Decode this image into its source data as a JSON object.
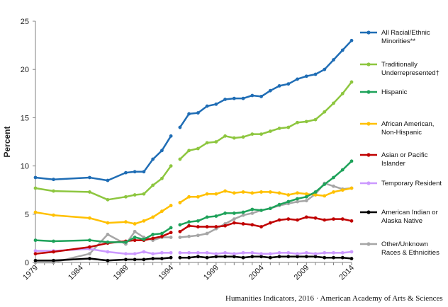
{
  "footer": "Humanities Indicators, 2016 · American Academy of Arts & Sciences",
  "chart_data": {
    "type": "line",
    "title": "",
    "xlabel": "",
    "ylabel": "Percent",
    "ylim": [
      0,
      25
    ],
    "yticks": [
      0,
      5,
      10,
      15,
      20,
      25
    ],
    "xticks": [
      1979,
      1984,
      1989,
      1994,
      1999,
      2004,
      2009,
      2014
    ],
    "xlim": [
      1979,
      2014
    ],
    "grid": false,
    "legend_position": "right",
    "series": [
      {
        "name": "All Racial/Ethnic Minorities**",
        "color": "#1f6db5",
        "segments": [
          {
            "x": [
              1979,
              1981,
              1985,
              1987,
              1989,
              1990,
              1991,
              1992,
              1993,
              1994
            ],
            "y": [
              8.8,
              8.6,
              8.8,
              8.5,
              9.3,
              9.4,
              9.4,
              10.7,
              11.6,
              13.1
            ]
          },
          {
            "x": [
              1995,
              1996,
              1997,
              1998,
              1999,
              2000,
              2001,
              2002,
              2003,
              2004,
              2005,
              2006,
              2007,
              2008,
              2009,
              2010,
              2011,
              2012,
              2013,
              2014
            ],
            "y": [
              14.0,
              15.4,
              15.5,
              16.2,
              16.4,
              16.9,
              17.0,
              17.0,
              17.3,
              17.2,
              17.8,
              18.3,
              18.5,
              19.0,
              19.3,
              19.5,
              20.0,
              21.0,
              22.0,
              23.0
            ]
          }
        ]
      },
      {
        "name": "Traditionally Underrepresented†",
        "color": "#8dc63f",
        "segments": [
          {
            "x": [
              1979,
              1981,
              1985,
              1987,
              1989,
              1990,
              1991,
              1992,
              1993,
              1994
            ],
            "y": [
              7.7,
              7.4,
              7.3,
              6.5,
              6.8,
              7.0,
              7.1,
              8.0,
              8.7,
              10.0
            ]
          },
          {
            "x": [
              1995,
              1996,
              1997,
              1998,
              1999,
              2000,
              2001,
              2002,
              2003,
              2004,
              2005,
              2006,
              2007,
              2008,
              2009,
              2010,
              2011,
              2012,
              2013,
              2014
            ],
            "y": [
              10.7,
              11.6,
              11.8,
              12.4,
              12.5,
              13.1,
              12.9,
              13.0,
              13.3,
              13.3,
              13.6,
              13.9,
              14.0,
              14.5,
              14.6,
              14.8,
              15.6,
              16.5,
              17.5,
              18.7
            ]
          }
        ]
      },
      {
        "name": "Hispanic",
        "color": "#1ea25a",
        "segments": [
          {
            "x": [
              1979,
              1981,
              1985,
              1987,
              1989,
              1990,
              1991,
              1992,
              1993,
              1994
            ],
            "y": [
              2.3,
              2.2,
              2.3,
              2.1,
              2.1,
              2.6,
              2.4,
              2.9,
              3.0,
              3.6
            ]
          },
          {
            "x": [
              1995,
              1996,
              1997,
              1998,
              1999,
              2000,
              2001,
              2002,
              2003,
              2004,
              2005,
              2006,
              2007,
              2008,
              2009,
              2010,
              2011,
              2012,
              2013,
              2014
            ],
            "y": [
              3.9,
              4.2,
              4.3,
              4.7,
              4.8,
              5.1,
              5.1,
              5.2,
              5.5,
              5.4,
              5.6,
              6.0,
              6.3,
              6.6,
              6.8,
              7.3,
              8.1,
              8.8,
              9.6,
              10.5
            ]
          }
        ]
      },
      {
        "name": "African American, Non-Hispanic",
        "color": "#ffc000",
        "segments": [
          {
            "x": [
              1979,
              1981,
              1985,
              1987,
              1989,
              1990,
              1991,
              1992,
              1993,
              1994
            ],
            "y": [
              5.2,
              4.9,
              4.6,
              4.1,
              4.2,
              4.0,
              4.3,
              4.7,
              5.3,
              5.9
            ]
          },
          {
            "x": [
              1995,
              1996,
              1997,
              1998,
              1999,
              2000,
              2001,
              2002,
              2003,
              2004,
              2005,
              2006,
              2007,
              2008,
              2009,
              2010,
              2011,
              2012,
              2013,
              2014
            ],
            "y": [
              6.2,
              6.8,
              6.8,
              7.1,
              7.1,
              7.4,
              7.2,
              7.3,
              7.2,
              7.3,
              7.3,
              7.2,
              7.0,
              7.2,
              7.1,
              7.0,
              6.9,
              7.3,
              7.5,
              7.7
            ]
          }
        ]
      },
      {
        "name": "Asian or Pacific Islander",
        "color": "#c00000",
        "segments": [
          {
            "x": [
              1979,
              1981,
              1985,
              1987,
              1989,
              1990,
              1991,
              1992,
              1993,
              1994
            ],
            "y": [
              0.9,
              1.1,
              1.6,
              2.0,
              2.2,
              2.3,
              2.3,
              2.5,
              2.7,
              3.1
            ]
          },
          {
            "x": [
              1995,
              1996,
              1997,
              1998,
              1999,
              2000,
              2001,
              2002,
              2003,
              2004,
              2005,
              2006,
              2007,
              2008,
              2009,
              2010,
              2011,
              2012,
              2013,
              2014
            ],
            "y": [
              3.2,
              3.8,
              3.7,
              3.7,
              3.7,
              3.8,
              4.1,
              4.0,
              3.9,
              3.7,
              4.1,
              4.4,
              4.5,
              4.4,
              4.7,
              4.6,
              4.4,
              4.5,
              4.5,
              4.3
            ]
          }
        ]
      },
      {
        "name": "Temporary Resident",
        "color": "#cc99ff",
        "segments": [
          {
            "x": [
              1979,
              1981,
              1985,
              1987,
              1989,
              1990,
              1991,
              1992,
              1993,
              1994
            ],
            "y": [
              1.2,
              1.2,
              1.4,
              1.1,
              0.9,
              0.9,
              1.1,
              0.9,
              1.0,
              1.0
            ]
          },
          {
            "x": [
              1995,
              1996,
              1997,
              1998,
              1999,
              2000,
              2001,
              2002,
              2003,
              2004,
              2005,
              2006,
              2007,
              2008,
              2009,
              2010,
              2011,
              2012,
              2013,
              2014
            ],
            "y": [
              1.0,
              1.0,
              1.0,
              1.0,
              0.9,
              1.0,
              0.9,
              1.0,
              1.0,
              0.9,
              0.9,
              1.0,
              1.0,
              0.9,
              1.0,
              0.9,
              1.0,
              1.0,
              1.0,
              1.1
            ]
          }
        ]
      },
      {
        "name": "American Indian or Alaska Native",
        "color": "#000000",
        "segments": [
          {
            "x": [
              1979,
              1981,
              1985,
              1987,
              1989,
              1990,
              1991,
              1992,
              1993,
              1994
            ],
            "y": [
              0.2,
              0.2,
              0.4,
              0.2,
              0.3,
              0.3,
              0.3,
              0.4,
              0.4,
              0.5
            ]
          },
          {
            "x": [
              1995,
              1996,
              1997,
              1998,
              1999,
              2000,
              2001,
              2002,
              2003,
              2004,
              2005,
              2006,
              2007,
              2008,
              2009,
              2010,
              2011,
              2012,
              2013,
              2014
            ],
            "y": [
              0.5,
              0.5,
              0.6,
              0.5,
              0.6,
              0.6,
              0.6,
              0.5,
              0.6,
              0.6,
              0.5,
              0.6,
              0.6,
              0.6,
              0.6,
              0.6,
              0.5,
              0.5,
              0.5,
              0.4
            ]
          }
        ]
      },
      {
        "name": "Other/Unknown Races & Ethnicities",
        "color": "#a6a6a6",
        "segments": [
          {
            "x": [
              1979,
              1981,
              1985,
              1987,
              1989,
              1990,
              1991,
              1992,
              1993,
              1994
            ],
            "y": [
              0.0,
              0.0,
              0.9,
              2.9,
              1.9,
              3.2,
              2.6,
              2.3,
              2.6,
              2.6
            ]
          },
          {
            "x": [
              1995,
              1996,
              1997,
              1998,
              1999,
              2000,
              2001,
              2002,
              2003,
              2004,
              2005,
              2006,
              2007,
              2008,
              2009,
              2010,
              2011,
              2012,
              2013,
              2014
            ],
            "y": [
              2.6,
              2.7,
              2.8,
              3.0,
              3.5,
              4.0,
              4.5,
              4.9,
              5.1,
              5.4,
              5.6,
              5.9,
              6.1,
              6.3,
              6.4,
              7.1,
              8.2,
              7.9,
              7.6,
              7.7
            ]
          }
        ]
      }
    ],
    "legend": [
      {
        "label_lines": [
          "All Racial/Ethnic",
          "Minorities**"
        ],
        "color": "#1f6db5"
      },
      {
        "label_lines": [
          "Traditionally",
          "Underrepresented†"
        ],
        "color": "#8dc63f"
      },
      {
        "label_lines": [
          "Hispanic"
        ],
        "color": "#1ea25a"
      },
      {
        "label_lines": [
          "African American,",
          "Non-Hispanic"
        ],
        "color": "#ffc000"
      },
      {
        "label_lines": [
          "Asian or Pacific",
          "Islander"
        ],
        "color": "#c00000"
      },
      {
        "label_lines": [
          "Temporary Resident"
        ],
        "color": "#cc99ff"
      },
      {
        "label_lines": [
          "American Indian or",
          "Alaska Native"
        ],
        "color": "#000000"
      },
      {
        "label_lines": [
          "Other/Unknown",
          "Races & Ethnicities"
        ],
        "color": "#a6a6a6"
      }
    ]
  }
}
